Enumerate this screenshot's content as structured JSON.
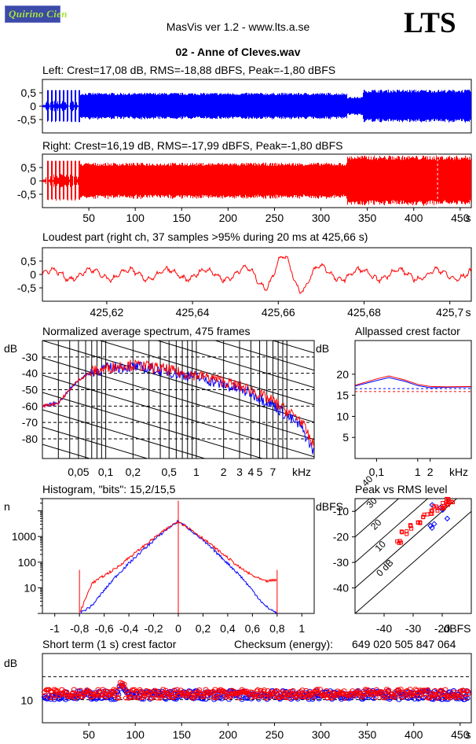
{
  "header": {
    "logo_text": "Quirino Cien",
    "app_title": "MasVis ver 1.2 - www.lts.a.se",
    "brand": "LTS",
    "file_title": "02 - Anne of Cleves.wav"
  },
  "colors": {
    "left": "#0000ff",
    "right": "#ff0000",
    "logo_bg": "#3c4aa8",
    "logo_text": "#a6e23c"
  },
  "chart_data": [
    {
      "type": "line",
      "title": "Left: Crest=17,08 dB, RMS=-18,88 dBFS, Peak=-1,80 dBFS",
      "channel": "left",
      "yticks": [
        "0,5",
        "0",
        "-0,5"
      ],
      "ylim": [
        -1,
        1
      ],
      "xlim": [
        0,
        462
      ],
      "sections": [
        {
          "x": [
            0,
            3
          ],
          "amp": 0.05
        },
        {
          "x": [
            3,
            40
          ],
          "amp": 0.6,
          "bursts": true
        },
        {
          "x": [
            40,
            328
          ],
          "amp": 0.5
        },
        {
          "x": [
            328,
            345
          ],
          "amp": 0.35
        },
        {
          "x": [
            345,
            462
          ],
          "amp": 0.62
        }
      ]
    },
    {
      "type": "line",
      "title": "Right: Crest=16,19 dB, RMS=-17,99 dBFS, Peak=-1,80 dBFS",
      "channel": "right",
      "yticks": [
        "0,5",
        "0",
        "-0,5"
      ],
      "ylim": [
        -1,
        1
      ],
      "xlim": [
        0,
        462
      ],
      "xticks": [
        "50",
        "100",
        "150",
        "200",
        "250",
        "300",
        "350",
        "400",
        "450"
      ],
      "xunit": "s",
      "marker_x": 425.66,
      "sections": [
        {
          "x": [
            0,
            3
          ],
          "amp": 0.05
        },
        {
          "x": [
            3,
            40
          ],
          "amp": 0.75,
          "bursts": true
        },
        {
          "x": [
            40,
            328
          ],
          "amp": 0.68
        },
        {
          "x": [
            328,
            462
          ],
          "amp": 0.95
        }
      ]
    },
    {
      "type": "line",
      "title": "Loudest part (right ch, 37 samples >95% during 20 ms at 425,66 s)",
      "yticks": [
        "0,5",
        "0",
        "-0,5"
      ],
      "ylim": [
        -1,
        1
      ],
      "xlim": [
        425.605,
        425.705
      ],
      "xticks": [
        "425,62",
        "425,64",
        "425,66",
        "425,68",
        "425,7"
      ],
      "xunit": "s"
    },
    {
      "type": "line",
      "title": "Normalized average spectrum, 475 frames",
      "ylabel": "dB",
      "yticks": [
        "-30",
        "-40",
        "-50",
        "-60",
        "-70",
        "-80"
      ],
      "ylim": [
        -92,
        -20
      ],
      "xscale": "log",
      "xlim": [
        0.02,
        20
      ],
      "xticks": [
        "0,05",
        "0,1",
        "0,2",
        "0,5",
        "1",
        "2",
        "3",
        "4",
        "5",
        "7"
      ],
      "xunit": "kHz",
      "series": [
        {
          "channel": "left",
          "x": [
            0.02,
            0.03,
            0.04,
            0.05,
            0.07,
            0.1,
            0.15,
            0.2,
            0.3,
            0.5,
            0.7,
            1,
            1.5,
            2,
            3,
            4,
            5,
            7,
            10,
            14,
            20
          ],
          "y": [
            -60,
            -58,
            -50,
            -44,
            -39,
            -37,
            -36,
            -36,
            -37,
            -39,
            -41,
            -42,
            -45,
            -47,
            -50,
            -52,
            -55,
            -59,
            -66,
            -72,
            -88
          ]
        },
        {
          "channel": "right",
          "x": [
            0.02,
            0.03,
            0.04,
            0.05,
            0.07,
            0.1,
            0.15,
            0.2,
            0.3,
            0.5,
            0.7,
            1,
            1.5,
            2,
            3,
            4,
            5,
            7,
            10,
            14,
            20
          ],
          "y": [
            -60,
            -58,
            -50,
            -44,
            -39,
            -37,
            -35,
            -35,
            -36,
            -38,
            -40,
            -41,
            -43,
            -45,
            -48,
            -50,
            -53,
            -57,
            -63,
            -68,
            -85
          ]
        }
      ]
    },
    {
      "type": "line",
      "title": "Allpassed crest factor",
      "ylabel": "dB",
      "yticks": [
        "20",
        "15",
        "10",
        "5"
      ],
      "ylim": [
        0,
        28
      ],
      "xscale": "log",
      "xlim": [
        0.03,
        20
      ],
      "xticks": [
        "0,1",
        "1",
        "2"
      ],
      "xunit": "kHz",
      "series": [
        {
          "channel": "left",
          "x": [
            0.03,
            0.1,
            0.2,
            0.5,
            1,
            2,
            5,
            20
          ],
          "y": [
            17.2,
            18.5,
            19.2,
            18.3,
            17.3,
            16.8,
            16.9,
            17.0
          ]
        },
        {
          "channel": "right",
          "x": [
            0.03,
            0.1,
            0.2,
            0.5,
            1,
            2,
            5,
            20
          ],
          "y": [
            17.4,
            18.9,
            19.6,
            18.6,
            17.6,
            17.1,
            17.0,
            17.1
          ]
        }
      ],
      "ref_left": 16.6,
      "ref_right": 15.9
    },
    {
      "type": "line",
      "title": "Histogram, \"bits\": 15,2/15,5",
      "ylabel": "n",
      "yscale": "log",
      "yticks": [
        "1000",
        "100",
        "10"
      ],
      "ylim": [
        1,
        30000
      ],
      "xlim": [
        -1.1,
        1.1
      ],
      "xticks": [
        "-1",
        "-0,8",
        "-0,6",
        "-0,4",
        "-0,2",
        "0",
        "0,2",
        "0,4",
        "0,6",
        "0,8",
        "1"
      ],
      "series": [
        {
          "channel": "left",
          "x": [
            -0.8,
            -0.7,
            -0.6,
            -0.5,
            -0.4,
            -0.3,
            -0.2,
            -0.1,
            0,
            0.1,
            0.2,
            0.3,
            0.4,
            0.5,
            0.6,
            0.7,
            0.8
          ],
          "y": [
            1,
            2,
            8,
            30,
            90,
            260,
            700,
            1800,
            4000,
            1800,
            700,
            260,
            90,
            30,
            8,
            2,
            1
          ]
        },
        {
          "channel": "right",
          "x": [
            -0.8,
            -0.7,
            -0.6,
            -0.5,
            -0.4,
            -0.3,
            -0.2,
            -0.1,
            0,
            0.1,
            0.2,
            0.3,
            0.4,
            0.5,
            0.6,
            0.7,
            0.8
          ],
          "y": [
            1,
            15,
            30,
            60,
            150,
            350,
            850,
            1900,
            4000,
            1900,
            850,
            350,
            150,
            60,
            30,
            18,
            20
          ]
        }
      ]
    },
    {
      "type": "scatter",
      "title": "Peak vs RMS level",
      "ylabel": "dBFS",
      "xlabel": "dBFS",
      "yticks": [
        "-10",
        "-20",
        "-30",
        "-40"
      ],
      "xticks": [
        "-40",
        "-30",
        "-20"
      ],
      "xlim": [
        -50,
        -10
      ],
      "ylim": [
        -50,
        -5
      ],
      "diag_labels": [
        "40",
        "30",
        "20",
        "10",
        "0 dB"
      ],
      "series": [
        {
          "channel": "left",
          "points": [
            [
              -23,
              -7
            ],
            [
              -21,
              -8
            ],
            [
              -20,
              -10
            ],
            [
              -19,
              -12
            ],
            [
              -22,
              -14
            ],
            [
              -24,
              -16
            ],
            [
              -25,
              -16
            ]
          ]
        },
        {
          "channel": "right",
          "points": [
            [
              -35,
              -22
            ],
            [
              -33,
              -18
            ],
            [
              -30,
              -16
            ],
            [
              -28,
              -14
            ],
            [
              -26,
              -12
            ],
            [
              -24,
              -10
            ],
            [
              -22,
              -9
            ],
            [
              -20,
              -8
            ],
            [
              -19,
              -7
            ],
            [
              -18,
              -6
            ],
            [
              -17,
              -6
            ]
          ]
        }
      ]
    },
    {
      "type": "scatter",
      "title": "Short term (1 s) crest factor",
      "ylabel": "dB",
      "yticks": [
        "10"
      ],
      "ylim": [
        0,
        30
      ],
      "xlim": [
        0,
        462
      ],
      "xticks": [
        "50",
        "100",
        "150",
        "200",
        "250",
        "300",
        "350",
        "400",
        "450"
      ],
      "xunit": "s",
      "ref_lines": [
        10,
        20
      ],
      "checksum_label": "Checksum (energy):",
      "checksum_value": "649 020 505 847 064"
    }
  ]
}
